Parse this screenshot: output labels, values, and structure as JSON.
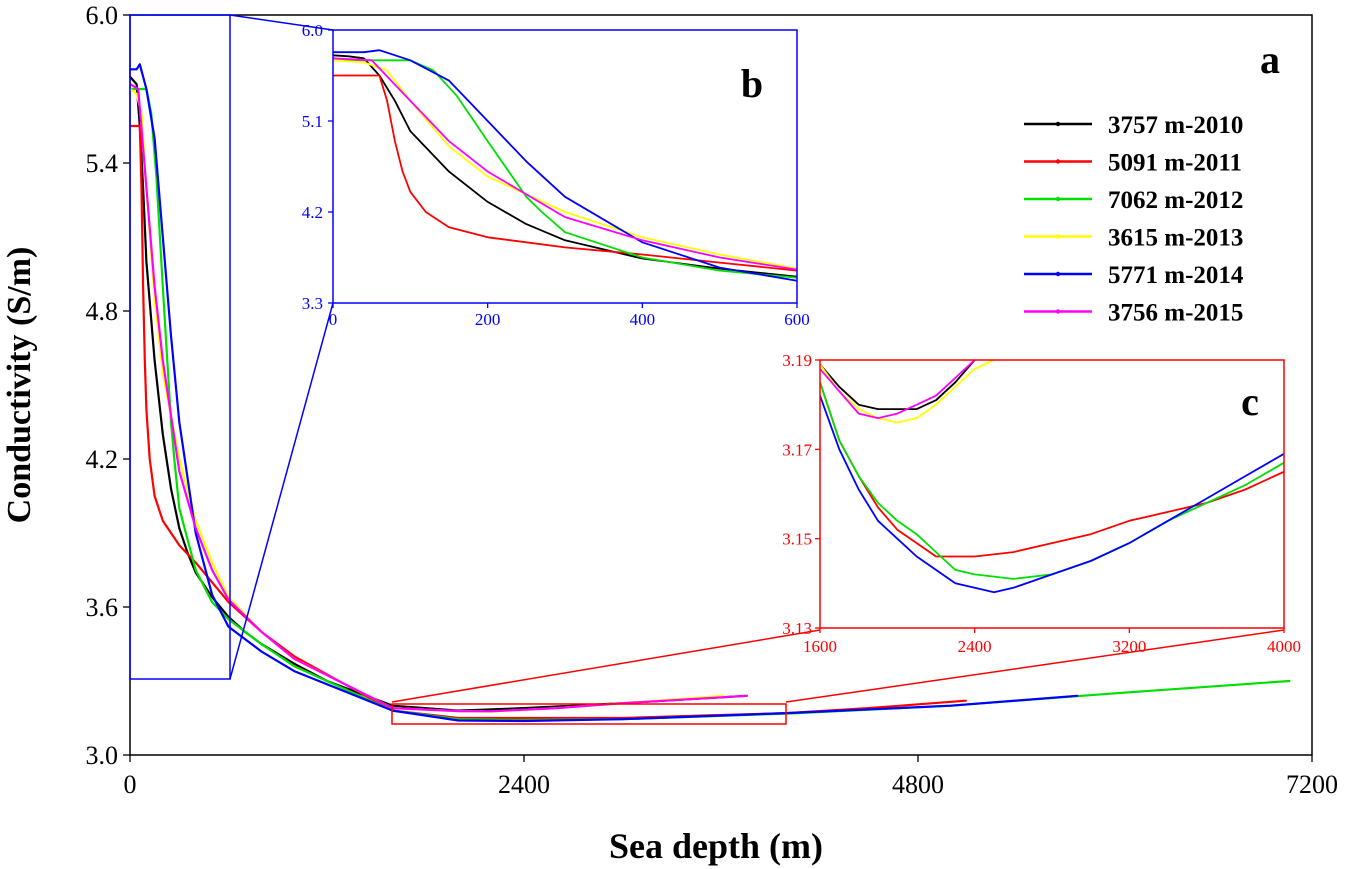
{
  "chart_data": [
    {
      "id": "a",
      "panel_label": "a",
      "type": "line",
      "xlabel": "Sea depth (m)",
      "ylabel": "Conductivity (S/m)",
      "xlim": [
        0,
        7200
      ],
      "ylim": [
        3.0,
        6.0
      ],
      "xticks": [
        "0",
        "2400",
        "4800",
        "7200"
      ],
      "yticks": [
        "3.0",
        "3.6",
        "4.2",
        "4.8",
        "5.4",
        "6.0"
      ],
      "legend_position": "right",
      "series": [
        {
          "name": "3757 m-2010",
          "color": "#000000",
          "x": [
            0,
            40,
            60,
            80,
            100,
            150,
            200,
            250,
            300,
            350,
            400,
            500,
            600,
            700,
            800,
            1000,
            1200,
            1600,
            2000,
            2400,
            3000,
            3757
          ],
          "y": [
            5.75,
            5.72,
            5.55,
            5.3,
            5.0,
            4.6,
            4.3,
            4.08,
            3.92,
            3.82,
            3.74,
            3.64,
            3.56,
            3.5,
            3.45,
            3.37,
            3.3,
            3.2,
            3.18,
            3.19,
            3.21,
            3.24
          ]
        },
        {
          "name": "5091 m-2011",
          "color": "#ff0000",
          "x": [
            0,
            30,
            60,
            70,
            80,
            90,
            100,
            120,
            150,
            200,
            300,
            400,
            600,
            800,
            1000,
            1600,
            2000,
            2400,
            3000,
            3500,
            4000,
            4500,
            5091
          ],
          "y": [
            5.55,
            5.55,
            5.55,
            5.3,
            4.9,
            4.6,
            4.4,
            4.2,
            4.05,
            3.95,
            3.85,
            3.78,
            3.62,
            3.5,
            3.4,
            3.18,
            3.15,
            3.15,
            3.15,
            3.16,
            3.17,
            3.19,
            3.22
          ]
        },
        {
          "name": "7062 m-2012",
          "color": "#00e000",
          "x": [
            0,
            50,
            100,
            130,
            160,
            200,
            250,
            270,
            300,
            400,
            500,
            600,
            800,
            1000,
            1600,
            2000,
            2400,
            3000,
            4000,
            5000,
            6000,
            7062
          ],
          "y": [
            5.7,
            5.7,
            5.7,
            5.6,
            5.35,
            4.9,
            4.35,
            4.2,
            4.0,
            3.75,
            3.62,
            3.55,
            3.45,
            3.36,
            3.18,
            3.145,
            3.142,
            3.145,
            3.168,
            3.2,
            3.25,
            3.3
          ]
        },
        {
          "name": "3615 m-2013",
          "color": "#ffff00",
          "x": [
            0,
            40,
            70,
            100,
            150,
            200,
            300,
            400,
            500,
            600,
            800,
            1000,
            1600,
            2000,
            2200,
            2600,
            3000,
            3615
          ],
          "y": [
            5.7,
            5.68,
            5.6,
            5.3,
            4.85,
            4.55,
            4.2,
            3.95,
            3.78,
            3.64,
            3.5,
            3.39,
            3.19,
            3.178,
            3.176,
            3.19,
            3.21,
            3.24
          ]
        },
        {
          "name": "5771 m-2014",
          "color": "#0000ff",
          "x": [
            0,
            40,
            60,
            100,
            150,
            200,
            250,
            300,
            400,
            500,
            600,
            800,
            1000,
            1600,
            2000,
            2400,
            3000,
            4000,
            5000,
            5771
          ],
          "y": [
            5.78,
            5.78,
            5.8,
            5.7,
            5.5,
            5.1,
            4.7,
            4.35,
            3.9,
            3.65,
            3.52,
            3.42,
            3.34,
            3.18,
            3.14,
            3.138,
            3.145,
            3.17,
            3.2,
            3.24
          ]
        },
        {
          "name": "3756 m-2015",
          "color": "#ff00ff",
          "x": [
            0,
            50,
            100,
            150,
            200,
            300,
            400,
            500,
            600,
            800,
            1000,
            1600,
            2000,
            2200,
            2600,
            3000,
            3756
          ],
          "y": [
            5.72,
            5.7,
            5.3,
            4.9,
            4.6,
            4.15,
            3.92,
            3.75,
            3.63,
            3.5,
            3.39,
            3.19,
            3.178,
            3.177,
            3.19,
            3.21,
            3.24
          ]
        }
      ]
    },
    {
      "id": "b",
      "panel_label": "b",
      "type": "line",
      "note": "inset zoom of panel a, 0-600 m",
      "xlim": [
        0,
        600
      ],
      "ylim": [
        3.3,
        6.0
      ],
      "xticks": [
        "0",
        "200",
        "400",
        "600"
      ],
      "yticks": [
        "3.3",
        "4.2",
        "5.1",
        "6.0"
      ],
      "series": [
        {
          "name": "3757 m-2010",
          "color": "#000000",
          "x": [
            0,
            20,
            40,
            60,
            80,
            100,
            150,
            200,
            250,
            300,
            400,
            500,
            600
          ],
          "y": [
            5.75,
            5.74,
            5.72,
            5.55,
            5.3,
            5.0,
            4.6,
            4.3,
            4.08,
            3.92,
            3.74,
            3.64,
            3.56
          ]
        },
        {
          "name": "5091 m-2011",
          "color": "#ff0000",
          "x": [
            0,
            30,
            60,
            70,
            80,
            90,
            100,
            120,
            150,
            200,
            250,
            300,
            400,
            500,
            600
          ],
          "y": [
            5.55,
            5.55,
            5.55,
            5.3,
            4.9,
            4.6,
            4.4,
            4.2,
            4.05,
            3.95,
            3.9,
            3.85,
            3.78,
            3.7,
            3.62
          ]
        },
        {
          "name": "7062 m-2012",
          "color": "#00e000",
          "x": [
            0,
            50,
            100,
            130,
            160,
            200,
            250,
            270,
            300,
            400,
            500,
            600
          ],
          "y": [
            5.7,
            5.7,
            5.7,
            5.6,
            5.35,
            4.9,
            4.35,
            4.2,
            4.0,
            3.75,
            3.62,
            3.55
          ]
        },
        {
          "name": "3615 m-2013",
          "color": "#ffff00",
          "x": [
            0,
            40,
            70,
            100,
            150,
            200,
            300,
            400,
            500,
            600
          ],
          "y": [
            5.7,
            5.68,
            5.6,
            5.3,
            4.85,
            4.55,
            4.2,
            3.95,
            3.78,
            3.64
          ]
        },
        {
          "name": "5771 m-2014",
          "color": "#0000ff",
          "x": [
            0,
            40,
            60,
            100,
            150,
            200,
            250,
            300,
            400,
            500,
            600
          ],
          "y": [
            5.78,
            5.78,
            5.8,
            5.7,
            5.5,
            5.1,
            4.7,
            4.35,
            3.9,
            3.65,
            3.52
          ]
        },
        {
          "name": "3756 m-2015",
          "color": "#ff00ff",
          "x": [
            0,
            50,
            100,
            150,
            200,
            300,
            400,
            500,
            600
          ],
          "y": [
            5.72,
            5.7,
            5.3,
            4.9,
            4.6,
            4.15,
            3.92,
            3.75,
            3.63
          ]
        }
      ]
    },
    {
      "id": "c",
      "panel_label": "c",
      "type": "line",
      "note": "inset zoom of panel a, 1600-4000 m",
      "xlim": [
        1600,
        4000
      ],
      "ylim": [
        3.13,
        3.19
      ],
      "xticks": [
        "1600",
        "2400",
        "3200",
        "4000"
      ],
      "yticks": [
        "3.13",
        "3.15",
        "3.17",
        "3.19"
      ],
      "series": [
        {
          "name": "3757 m-2010",
          "color": "#000000",
          "x": [
            1600,
            1700,
            1800,
            1900,
            2000,
            2100,
            2200,
            2300,
            2400
          ],
          "y": [
            3.189,
            3.184,
            3.18,
            3.179,
            3.179,
            3.179,
            3.181,
            3.185,
            3.19
          ]
        },
        {
          "name": "5091 m-2011",
          "color": "#ff0000",
          "x": [
            1600,
            1700,
            1800,
            1900,
            2000,
            2100,
            2200,
            2400,
            2600,
            2800,
            3000,
            3200,
            3400,
            3600,
            3800,
            4000
          ],
          "y": [
            3.185,
            3.172,
            3.164,
            3.157,
            3.152,
            3.149,
            3.146,
            3.146,
            3.147,
            3.149,
            3.151,
            3.154,
            3.156,
            3.158,
            3.161,
            3.165
          ]
        },
        {
          "name": "7062 m-2012",
          "color": "#00e000",
          "x": [
            1600,
            1700,
            1800,
            1900,
            2000,
            2100,
            2200,
            2300,
            2400,
            2600,
            2800,
            3000,
            3200,
            3400,
            3600,
            3800,
            4000
          ],
          "y": [
            3.185,
            3.172,
            3.164,
            3.158,
            3.154,
            3.151,
            3.147,
            3.143,
            3.142,
            3.141,
            3.142,
            3.145,
            3.149,
            3.154,
            3.158,
            3.162,
            3.167
          ]
        },
        {
          "name": "3615 m-2013",
          "color": "#ffff00",
          "x": [
            1600,
            1700,
            1800,
            1900,
            2000,
            2100,
            2200,
            2300,
            2400,
            2500
          ],
          "y": [
            3.189,
            3.183,
            3.179,
            3.177,
            3.176,
            3.177,
            3.18,
            3.184,
            3.188,
            3.19
          ]
        },
        {
          "name": "5771 m-2014",
          "color": "#0000ff",
          "x": [
            1600,
            1700,
            1800,
            1900,
            2000,
            2100,
            2200,
            2300,
            2400,
            2500,
            2600,
            2800,
            3000,
            3200,
            3400,
            3600,
            3800,
            4000
          ],
          "y": [
            3.182,
            3.17,
            3.161,
            3.154,
            3.15,
            3.146,
            3.143,
            3.14,
            3.139,
            3.138,
            3.139,
            3.142,
            3.145,
            3.149,
            3.154,
            3.159,
            3.164,
            3.169
          ]
        },
        {
          "name": "3756 m-2015",
          "color": "#ff00ff",
          "x": [
            1600,
            1700,
            1800,
            1900,
            2000,
            2100,
            2200,
            2300,
            2400
          ],
          "y": [
            3.188,
            3.183,
            3.178,
            3.177,
            3.178,
            3.18,
            3.182,
            3.186,
            3.19
          ]
        }
      ]
    }
  ]
}
